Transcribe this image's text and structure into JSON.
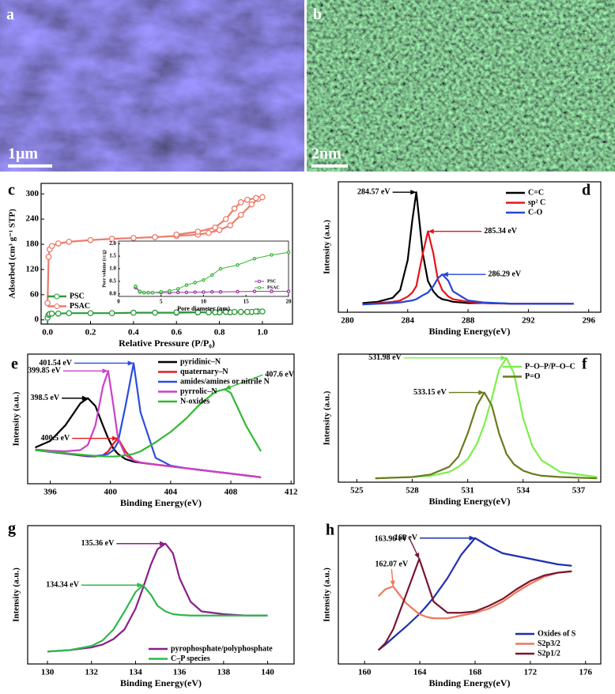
{
  "images": [
    {
      "panel": "a",
      "scale_bar": "1μm"
    },
    {
      "panel": "b",
      "scale_bar": "2nm"
    }
  ],
  "chart_data": [
    {
      "type": "line",
      "panel": "c",
      "xlabel": "Relative Pressure (P/P₀)",
      "ylabel": "Adsorbed (cm³ g⁻¹ STP)",
      "markers": true,
      "xlim": [
        -0.03,
        1.14
      ],
      "ylim": [
        -10,
        325
      ],
      "xticks": [
        {
          "value": 0,
          "label": "0.0"
        },
        {
          "value": 0.2,
          "label": "0.2"
        },
        {
          "value": 0.4,
          "label": "0.4"
        },
        {
          "value": 0.6,
          "label": "0.6"
        },
        {
          "value": 0.8,
          "label": "0.8"
        },
        {
          "value": 1,
          "label": "1.0"
        }
      ],
      "yticks": [
        0,
        60,
        120,
        180,
        240,
        300
      ],
      "x": [
        0,
        0.005,
        0.01,
        0.02,
        0.05,
        0.1,
        0.2,
        0.3,
        0.4,
        0.5,
        0.6,
        0.7,
        0.75,
        0.8,
        0.85,
        0.9,
        0.95,
        0.98,
        1.0,
        0.97,
        0.93,
        0.9,
        0.87,
        0.83,
        0.78,
        0.7,
        0.6
      ],
      "series": [
        {
          "name": "PSC",
          "color": "#2e9a3a",
          "values": [
            5,
            12,
            14,
            15,
            15,
            16,
            16,
            16,
            17,
            17,
            17,
            18,
            18,
            18,
            18,
            19,
            19,
            20,
            20,
            20,
            19,
            19,
            19,
            19,
            18,
            18,
            18
          ]
        },
        {
          "name": "PSAC",
          "color": "#ee7b6c",
          "values": [
            40,
            150,
            168,
            176,
            182,
            186,
            190,
            193,
            195,
            197,
            200,
            203,
            207,
            214,
            225,
            250,
            275,
            288,
            292,
            290,
            286,
            280,
            265,
            240,
            220,
            210,
            203
          ]
        }
      ]
    },
    {
      "type": "line",
      "xlabel": "Pore diameter (nm)",
      "ylabel": "Pore volume (cc/g)",
      "markers": true,
      "xlim": [
        0,
        20
      ],
      "ylim": [
        -0.1,
        2.1
      ],
      "xticks": [
        0,
        5,
        10,
        15,
        20
      ],
      "yticks": [
        {
          "value": 0,
          "label": "0.0"
        },
        {
          "value": 0.5,
          "label": "0.5"
        },
        {
          "value": 1,
          "label": "1.0"
        },
        {
          "value": 1.5,
          "label": "1.5"
        },
        {
          "value": 2,
          "label": "2.0"
        }
      ],
      "x": [
        2,
        2.5,
        3,
        3.5,
        4,
        5,
        6,
        7,
        8,
        9,
        10,
        11,
        12,
        14,
        16,
        18,
        20
      ],
      "series": [
        {
          "name": "PSC",
          "color": "#9b30a0",
          "values": [
            0.25,
            0.08,
            0.05,
            0.05,
            0.05,
            0.05,
            0.05,
            0.06,
            0.06,
            0.07,
            0.07,
            0.08,
            0.08,
            0.09,
            0.1,
            0.1,
            0.1
          ]
        },
        {
          "name": "PSAC",
          "color": "#33b833",
          "values": [
            0.3,
            0.1,
            0.05,
            0.05,
            0.05,
            0.08,
            0.12,
            0.2,
            0.35,
            0.45,
            0.55,
            0.75,
            1.0,
            1.15,
            1.4,
            1.55,
            1.65
          ]
        }
      ]
    },
    {
      "type": "line",
      "panel": "d",
      "xlabel": "Binding Energy(eV)",
      "ylabel": "Intensity (a.u.)",
      "xlim": [
        279.4,
        296.8
      ],
      "ylim": [
        0,
        100
      ],
      "xticks": [
        280,
        284,
        288,
        292,
        296
      ],
      "x": [
        281,
        282,
        283,
        283.5,
        284,
        284.3,
        284.57,
        285,
        285.34,
        285.7,
        286,
        286.29,
        286.7,
        287,
        288,
        289,
        291,
        295
      ],
      "series": [
        {
          "name": "C=C",
          "color": "#000000",
          "values": [
            7,
            8,
            11,
            17,
            40,
            70,
            92,
            45,
            24,
            16,
            12,
            10,
            9,
            8,
            7,
            7,
            6.5,
            6.5
          ]
        },
        {
          "name": "sp² C",
          "color": "#e8141c",
          "values": [
            6,
            7,
            8,
            9,
            12,
            15,
            20,
            45,
            62,
            45,
            25,
            17,
            12,
            10,
            8,
            7,
            6.5,
            6.5
          ]
        },
        {
          "name": "C-O",
          "color": "#2546d4",
          "values": [
            6,
            6.5,
            7,
            7.5,
            8.5,
            9,
            10,
            13,
            15,
            20,
            26,
            29,
            24,
            16,
            9,
            7.5,
            6.5,
            6.5
          ]
        }
      ],
      "annotations": [
        {
          "value": 284.57,
          "label": "284.57 eV"
        },
        {
          "value": 285.34,
          "label": "285.34 eV"
        },
        {
          "value": 286.29,
          "label": "286.29 eV"
        }
      ]
    },
    {
      "type": "line",
      "panel": "e",
      "xlabel": "Binding Energy(eV)",
      "ylabel": "Intensity (a.u.)",
      "xlim": [
        394.5,
        412.2
      ],
      "ylim": [
        0,
        100
      ],
      "xticks": [
        396,
        400,
        404,
        408,
        412
      ],
      "x": [
        395,
        396,
        397,
        398,
        398.5,
        399,
        399.5,
        399.85,
        400.2,
        400.5,
        401,
        401.54,
        402,
        403,
        404,
        405,
        406,
        407,
        407.6,
        408,
        409,
        410
      ],
      "series": [
        {
          "name": "pyridinic–N",
          "color": "#000000",
          "values": [
            28,
            33,
            45,
            62,
            66,
            60,
            45,
            35,
            27,
            23,
            19,
            17,
            16.2,
            14.8,
            13.4,
            12,
            10.6,
            9.2,
            8.4,
            7.8,
            6.4,
            5
          ]
        },
        {
          "name": "quaternary–N",
          "color": "#e81b1b",
          "values": [
            26,
            24.6,
            23.2,
            21.8,
            21.1,
            21,
            22,
            25,
            31,
            35,
            25,
            18,
            16.2,
            14.8,
            13.4,
            12,
            10.6,
            9.2,
            8.4,
            7.8,
            6.4,
            5
          ]
        },
        {
          "name": "amides/amines or nitrile N",
          "color": "#2b4ce0",
          "values": [
            26,
            24.6,
            23.3,
            22,
            21.5,
            21.5,
            22,
            23,
            26,
            32,
            60,
            93,
            55,
            20,
            14,
            12,
            10.6,
            9.2,
            8.4,
            7.8,
            6.4,
            5
          ]
        },
        {
          "name": "pyrrolic–N",
          "color": "#cc40c8",
          "values": [
            26.5,
            25.5,
            25,
            26,
            30,
            45,
            75,
            87,
            60,
            35,
            22,
            18,
            16.5,
            14.8,
            13.4,
            12,
            10.6,
            9.2,
            8.4,
            7.8,
            6.4,
            5
          ]
        },
        {
          "name": "N-oxides",
          "color": "#33b833",
          "values": [
            26,
            24.8,
            23.6,
            22.5,
            22,
            21.5,
            21.2,
            21,
            21,
            21.2,
            22,
            23,
            25,
            32,
            40,
            50,
            62,
            71,
            73,
            70,
            45,
            25
          ]
        }
      ],
      "annotations": [
        {
          "value": 398.5,
          "label": "398.5 eV"
        },
        {
          "value": 400.5,
          "label": "400.5 eV"
        },
        {
          "value": 401.54,
          "label": "401.54 eV"
        },
        {
          "value": 399.85,
          "label": "399.85 eV"
        },
        {
          "value": 407.6,
          "label": "407.6 eV"
        }
      ]
    },
    {
      "type": "line",
      "panel": "f",
      "xlabel": "Binding Energy(eV)",
      "ylabel": "Intensity (a.u.)",
      "xlim": [
        524,
        538.2
      ],
      "ylim": [
        0,
        100
      ],
      "xticks": [
        525,
        528,
        531,
        534,
        537
      ],
      "x": [
        526,
        528,
        529,
        530,
        530.5,
        531,
        531.5,
        531.9,
        532.3,
        532.7,
        533.1,
        533.5,
        534,
        534.5,
        535,
        536,
        538
      ],
      "series": [
        {
          "name": "P–O–P/P–O–C",
          "color": "#7cf04a",
          "values": [
            3,
            4,
            5,
            8,
            12,
            18,
            30,
            45,
            65,
            88,
            97,
            85,
            50,
            28,
            17,
            8,
            4
          ]
        },
        {
          "name": "P=O",
          "color": "#6b7a1e",
          "values": [
            3,
            4,
            6,
            12,
            20,
            38,
            60,
            70,
            60,
            38,
            22,
            14,
            9,
            6.5,
            5,
            4,
            3
          ]
        }
      ],
      "annotations": [
        {
          "value": 531.98,
          "label": "531.98 eV"
        },
        {
          "value": 533.15,
          "label": "533.15 eV"
        }
      ]
    },
    {
      "type": "line",
      "panel": "g",
      "xlabel": "Binding Energy(eV)",
      "ylabel": "Intensity (a.u.)",
      "xlim": [
        129.1,
        141.2
      ],
      "ylim": [
        0,
        100
      ],
      "xticks": [
        130,
        132,
        134,
        136,
        138,
        140
      ],
      "x": [
        130,
        131,
        132,
        132.5,
        133,
        133.5,
        134,
        134.34,
        134.7,
        135,
        135.36,
        135.7,
        136,
        136.5,
        137,
        138,
        139,
        140
      ],
      "series": [
        {
          "name": "pyrophosphate/polyphosphate",
          "color": "#8a1f8a",
          "values": [
            9,
            10,
            12,
            14,
            18,
            25,
            40,
            55,
            72,
            83,
            87,
            80,
            62,
            45,
            38,
            36,
            35,
            35
          ]
        },
        {
          "name": "C–P species",
          "color": "#2fb84d",
          "values": [
            9,
            10,
            13,
            17,
            25,
            38,
            52,
            57,
            50,
            42,
            38,
            36,
            35.5,
            35,
            35,
            35,
            35,
            35
          ]
        }
      ],
      "annotations": [
        {
          "value": 135.36,
          "label": "135.36 eV"
        },
        {
          "value": 134.34,
          "label": "134.34 eV"
        }
      ]
    },
    {
      "type": "line",
      "panel": "h",
      "xlabel": "Binding Energy(eV)",
      "ylabel": "Intensity (a.u.)",
      "xlim": [
        158.1,
        177.1
      ],
      "ylim": [
        0,
        100
      ],
      "xticks": [
        160,
        164,
        168,
        172,
        176
      ],
      "x": [
        161,
        161.5,
        162.07,
        163,
        163.96,
        164.5,
        165,
        166,
        167,
        168,
        169,
        170,
        171,
        172,
        173,
        174,
        175
      ],
      "series": [
        {
          "name": "Oxides of S",
          "color": "#1f2fb0",
          "values": [
            10,
            14,
            19,
            27,
            36,
            42,
            48,
            62,
            79,
            91,
            85,
            80,
            78,
            76,
            74,
            72,
            71
          ]
        },
        {
          "name": "S2p3/2",
          "color": "#f0785a",
          "values": [
            49,
            54,
            56,
            44,
            36,
            34,
            33,
            33,
            35,
            37,
            40,
            45,
            52,
            58,
            63,
            66,
            67
          ]
        },
        {
          "name": "S2p1/2",
          "color": "#7a1630",
          "values": [
            10,
            15,
            25,
            50,
            76,
            60,
            45,
            37,
            37,
            38,
            42,
            47,
            54,
            60,
            64,
            66,
            67
          ]
        }
      ],
      "annotations": [
        {
          "value": 168,
          "label": "168 eV"
        },
        {
          "value": 162.07,
          "label": "162.07 eV"
        },
        {
          "value": 163.96,
          "label": "163.96 eV"
        }
      ]
    }
  ]
}
